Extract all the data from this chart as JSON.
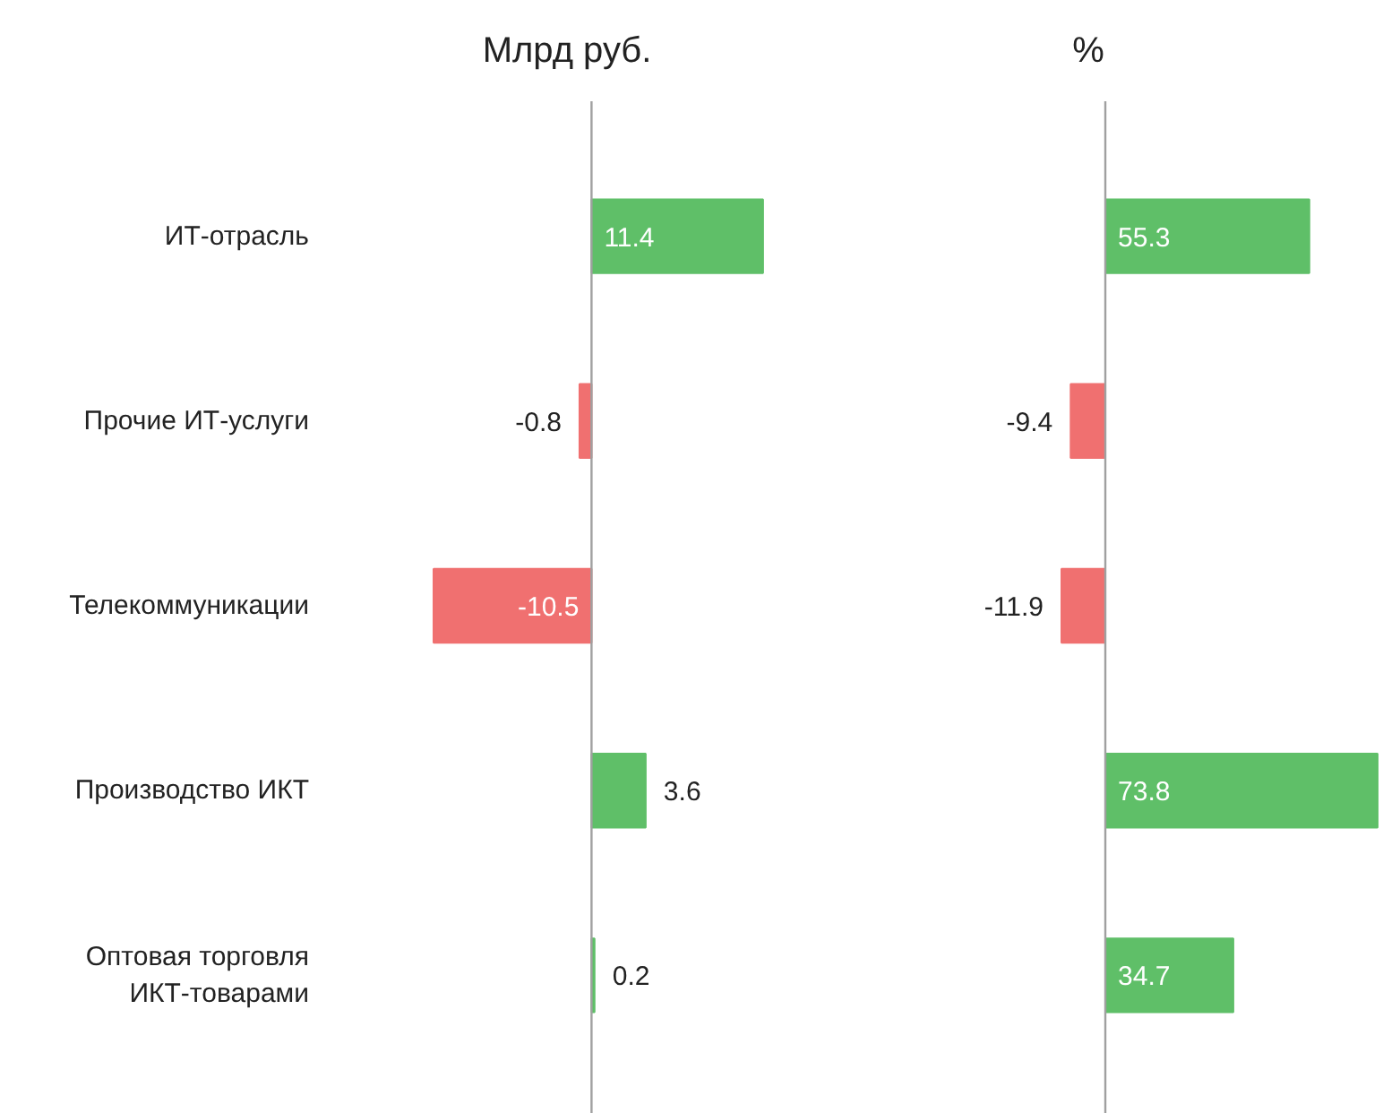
{
  "chart_data": [
    {
      "type": "bar",
      "orientation": "horizontal",
      "title": "Млрд руб.",
      "categories": [
        "ИТ-отрасль",
        "Прочие ИТ-услуги",
        "Телекоммуникации",
        "Производство ИКТ",
        "Оптовая торговля\nИКТ-товарами"
      ],
      "values": [
        11.4,
        -0.8,
        -10.5,
        3.6,
        0.2
      ],
      "colors": [
        "#5fbf68",
        "#f07070",
        "#f07070",
        "#5fbf68",
        "#5fbf68"
      ],
      "data_labels": true
    },
    {
      "type": "bar",
      "orientation": "horizontal",
      "title": "%",
      "categories": [
        null,
        null,
        null,
        null,
        null
      ],
      "values": [
        55.3,
        -9.4,
        -11.9,
        73.8,
        34.7
      ],
      "colors": [
        "#5fbf68",
        "#f07070",
        "#f07070",
        "#5fbf68",
        "#5fbf68"
      ],
      "data_labels": true
    }
  ]
}
